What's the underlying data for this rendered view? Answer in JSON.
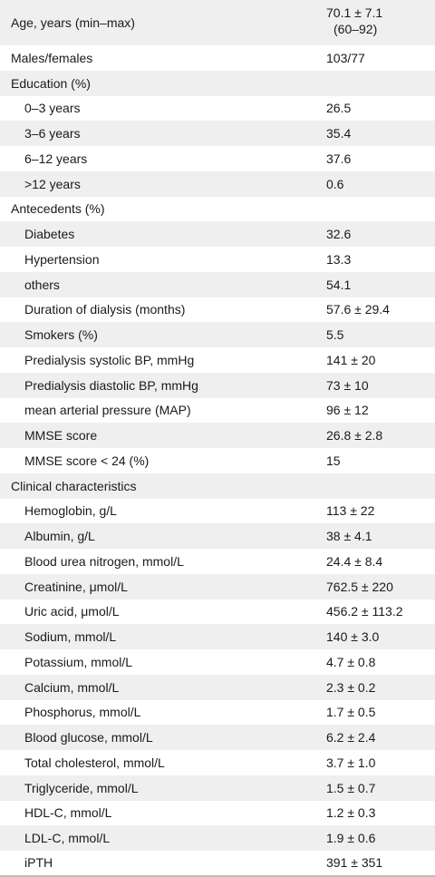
{
  "rows": [
    {
      "label": "Age, years (min–max)",
      "value": "70.1 ± 7.1",
      "value2": "(60–92)",
      "indent": false
    },
    {
      "label": "Males/females",
      "value": "103/77",
      "indent": false
    },
    {
      "label": "Education (%)",
      "value": "",
      "indent": false
    },
    {
      "label": "0–3 years",
      "value": "26.5",
      "indent": true
    },
    {
      "label": "3–6 years",
      "value": "35.4",
      "indent": true
    },
    {
      "label": "6–12 years",
      "value": "37.6",
      "indent": true
    },
    {
      "label": ">12 years",
      "value": "0.6",
      "indent": true
    },
    {
      "label": "Antecedents (%)",
      "value": "",
      "indent": false
    },
    {
      "label": "Diabetes",
      "value": "32.6",
      "indent": true
    },
    {
      "label": "Hypertension",
      "value": "13.3",
      "indent": true
    },
    {
      "label": "others",
      "value": "54.1",
      "indent": true
    },
    {
      "label": "Duration of dialysis (months)",
      "value": "57.6 ± 29.4",
      "indent": true
    },
    {
      "label": "Smokers (%)",
      "value": "5.5",
      "indent": true
    },
    {
      "label": "Predialysis systolic BP, mmHg",
      "value": "141 ± 20",
      "indent": true
    },
    {
      "label": "Predialysis diastolic BP, mmHg",
      "value": "73 ± 10",
      "indent": true
    },
    {
      "label": "mean arterial pressure (MAP)",
      "value": "96 ± 12",
      "indent": true
    },
    {
      "label": "MMSE score",
      "value": "26.8 ± 2.8",
      "indent": true
    },
    {
      "label": "MMSE score < 24 (%)",
      "value": "15",
      "indent": true
    },
    {
      "label": "Clinical characteristics",
      "value": "",
      "indent": false
    },
    {
      "label": "Hemoglobin, g/L",
      "value": "113 ± 22",
      "indent": true
    },
    {
      "label": "Albumin, g/L",
      "value": "38 ± 4.1",
      "indent": true
    },
    {
      "label": "Blood urea nitrogen, mmol/L",
      "value": "24.4 ± 8.4",
      "indent": true
    },
    {
      "label": "Creatinine, μmol/L",
      "value": "762.5 ± 220",
      "indent": true
    },
    {
      "label": "Uric acid, μmol/L",
      "value": "456.2 ± 113.2",
      "indent": true
    },
    {
      "label": "Sodium, mmol/L",
      "value": "140 ± 3.0",
      "indent": true
    },
    {
      "label": "Potassium, mmol/L",
      "value": "4.7 ± 0.8",
      "indent": true
    },
    {
      "label": "Calcium, mmol/L",
      "value": "2.3 ± 0.2",
      "indent": true
    },
    {
      "label": "Phosphorus, mmol/L",
      "value": "1.7 ± 0.5",
      "indent": true
    },
    {
      "label": "Blood glucose, mmol/L",
      "value": "6.2 ± 2.4",
      "indent": true
    },
    {
      "label": "Total cholesterol, mmol/L",
      "value": "3.7 ± 1.0",
      "indent": true
    },
    {
      "label": "Triglyceride, mmol/L",
      "value": "1.5 ± 0.7",
      "indent": true
    },
    {
      "label": "HDL-C, mmol/L",
      "value": "1.2 ± 0.3",
      "indent": true
    },
    {
      "label": "LDL-C, mmol/L",
      "value": "1.9 ± 0.6",
      "indent": true
    },
    {
      "label": "iPTH",
      "value": "391 ± 351",
      "indent": true
    }
  ]
}
